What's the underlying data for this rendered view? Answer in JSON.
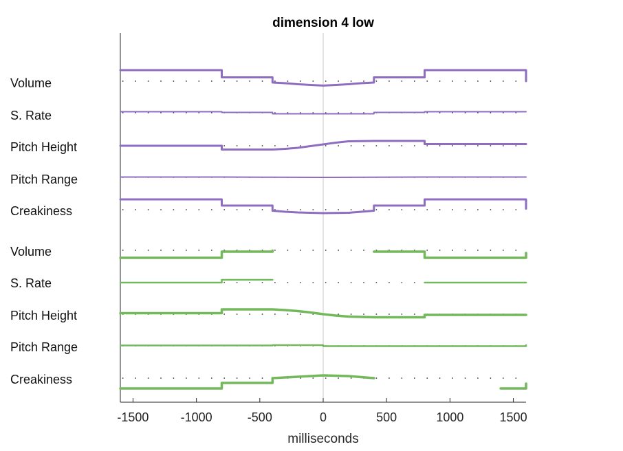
{
  "chart_data": {
    "type": "line",
    "title": "dimension  4 low",
    "xlabel": "milliseconds",
    "ylabel": "",
    "xlim": [
      -1600,
      1600
    ],
    "x_ticks": [
      "-1500",
      "-1000",
      "-500",
      "0",
      "500",
      "1000",
      "1500"
    ],
    "x_tick_values": [
      -1500,
      -1000,
      -500,
      0,
      500,
      1000,
      1500
    ],
    "zero_line": true,
    "baseline_dots": true,
    "colors": {
      "upper": "#8e6cc0",
      "lower": "#74b85c",
      "zero_line": "#c8c8c8",
      "dots": "#333333"
    },
    "row_labels": [
      "Volume",
      "S. Rate",
      "Pitch Height",
      "Pitch Range",
      "Creakiness",
      "Volume",
      "S. Rate",
      "Pitch Height",
      "Pitch Range",
      "Creakiness"
    ],
    "series": [
      {
        "feature": "Volume",
        "group": "upper",
        "segments": [
          [
            [
              -1600,
              1.6
            ],
            [
              -800,
              1.6
            ],
            [
              -800,
              0.55
            ],
            [
              -400,
              0.55
            ],
            [
              -400,
              -0.2
            ],
            [
              -300,
              -0.3
            ],
            [
              -200,
              -0.45
            ],
            [
              -100,
              -0.55
            ],
            [
              0,
              -0.65
            ],
            [
              100,
              -0.55
            ],
            [
              200,
              -0.45
            ],
            [
              300,
              -0.3
            ],
            [
              400,
              -0.2
            ],
            [
              400,
              0.55
            ],
            [
              800,
              0.55
            ],
            [
              800,
              1.6
            ],
            [
              1600,
              1.6
            ],
            [
              1600,
              0.0
            ]
          ]
        ]
      },
      {
        "feature": "S. Rate",
        "group": "upper",
        "segments": [
          [
            [
              -1600,
              0.15
            ],
            [
              -800,
              0.15
            ],
            [
              -800,
              0.05
            ],
            [
              -400,
              0.05
            ],
            [
              -400,
              -0.15
            ],
            [
              400,
              -0.15
            ],
            [
              400,
              0.05
            ],
            [
              800,
              0.05
            ],
            [
              800,
              0.15
            ],
            [
              1600,
              0.15
            ]
          ]
        ]
      },
      {
        "feature": "Pitch Height",
        "group": "upper",
        "segments": [
          [
            [
              -1600,
              0.0
            ],
            [
              -800,
              0.0
            ],
            [
              -800,
              -0.55
            ],
            [
              -400,
              -0.55
            ],
            [
              -300,
              -0.45
            ],
            [
              -200,
              -0.3
            ],
            [
              -100,
              -0.05
            ],
            [
              0,
              0.2
            ],
            [
              100,
              0.45
            ],
            [
              200,
              0.65
            ],
            [
              400,
              0.7
            ],
            [
              800,
              0.7
            ],
            [
              800,
              0.25
            ],
            [
              1600,
              0.25
            ]
          ]
        ]
      },
      {
        "feature": "Pitch Range",
        "group": "upper",
        "segments": [
          [
            [
              -1600,
              0.05
            ],
            [
              -800,
              0.05
            ],
            [
              -400,
              0.02
            ],
            [
              0,
              0.0
            ],
            [
              400,
              0.02
            ],
            [
              800,
              0.05
            ],
            [
              1600,
              0.05
            ]
          ]
        ]
      },
      {
        "feature": "Creakiness",
        "group": "upper",
        "segments": [
          [
            [
              -1600,
              1.5
            ],
            [
              -800,
              1.5
            ],
            [
              -800,
              0.6
            ],
            [
              -400,
              0.6
            ],
            [
              -400,
              -0.15
            ],
            [
              -300,
              -0.3
            ],
            [
              -200,
              -0.4
            ],
            [
              0,
              -0.5
            ],
            [
              200,
              -0.45
            ],
            [
              300,
              -0.3
            ],
            [
              400,
              -0.15
            ],
            [
              400,
              0.6
            ],
            [
              800,
              0.6
            ],
            [
              800,
              1.5
            ],
            [
              1600,
              1.5
            ],
            [
              1600,
              0.15
            ]
          ]
        ]
      },
      {
        "feature": "Volume",
        "group": "lower",
        "segments": [
          [
            [
              -1600,
              -1.1
            ],
            [
              -800,
              -1.1
            ],
            [
              -800,
              -0.2
            ],
            [
              -400,
              -0.2
            ],
            [
              -400,
              -0.05
            ]
          ],
          [
            [
              400,
              -0.2
            ],
            [
              800,
              -0.2
            ],
            [
              800,
              -1.1
            ],
            [
              1600,
              -1.1
            ],
            [
              1600,
              -0.4
            ]
          ]
        ]
      },
      {
        "feature": "S. Rate",
        "group": "lower",
        "segments": [
          [
            [
              -1600,
              0.0
            ],
            [
              -800,
              0.0
            ],
            [
              -800,
              0.4
            ],
            [
              -400,
              0.4
            ]
          ],
          [
            [
              800,
              0.0
            ],
            [
              1600,
              0.0
            ]
          ]
        ]
      },
      {
        "feature": "Pitch Height",
        "group": "lower",
        "segments": [
          [
            [
              -1600,
              0.15
            ],
            [
              -800,
              0.15
            ],
            [
              -800,
              0.7
            ],
            [
              -400,
              0.7
            ],
            [
              -300,
              0.6
            ],
            [
              -200,
              0.45
            ],
            [
              -100,
              0.25
            ],
            [
              0,
              0.0
            ],
            [
              100,
              -0.2
            ],
            [
              200,
              -0.35
            ],
            [
              400,
              -0.45
            ],
            [
              800,
              -0.45
            ],
            [
              800,
              -0.1
            ],
            [
              1600,
              -0.1
            ]
          ]
        ]
      },
      {
        "feature": "Pitch Range",
        "group": "lower",
        "segments": [
          [
            [
              -1600,
              0.05
            ],
            [
              -400,
              0.05
            ],
            [
              -400,
              0.1
            ],
            [
              0,
              0.1
            ],
            [
              0,
              -0.05
            ],
            [
              1600,
              -0.05
            ],
            [
              1600,
              0.1
            ]
          ]
        ]
      },
      {
        "feature": "Creakiness",
        "group": "lower",
        "segments": [
          [
            [
              -1600,
              -1.5
            ],
            [
              -800,
              -1.5
            ],
            [
              -800,
              -0.7
            ],
            [
              -400,
              -0.7
            ],
            [
              -400,
              0.0
            ],
            [
              -200,
              0.2
            ],
            [
              0,
              0.4
            ],
            [
              200,
              0.3
            ],
            [
              300,
              0.15
            ],
            [
              400,
              0.0
            ]
          ],
          [
            [
              1400,
              -1.5
            ],
            [
              1600,
              -1.5
            ],
            [
              1600,
              -0.8
            ]
          ]
        ]
      }
    ]
  }
}
